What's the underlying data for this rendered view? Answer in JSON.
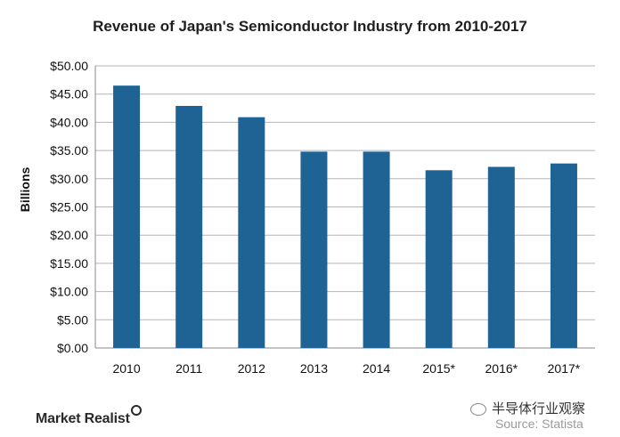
{
  "chart_data": {
    "type": "bar",
    "title": "Revenue of Japan's Semiconductor Industry from 2010-2017",
    "ylabel": "Billions",
    "categories": [
      "2010",
      "2011",
      "2012",
      "2013",
      "2014",
      "2015*",
      "2016*",
      "2017*"
    ],
    "values": [
      46.5,
      42.9,
      40.9,
      34.8,
      34.8,
      31.5,
      32.1,
      32.7
    ],
    "ylim": [
      0,
      50
    ],
    "yticks": [
      "$0.00",
      "$5.00",
      "$10.00",
      "$15.00",
      "$20.00",
      "$25.00",
      "$30.00",
      "$35.00",
      "$40.00",
      "$45.00",
      "$50.00"
    ],
    "grid": true,
    "bar_color": "#1f6395"
  },
  "footer": {
    "brand": "Market Realist",
    "wechat": "半导体行业观察",
    "source": "Source: Statista"
  }
}
